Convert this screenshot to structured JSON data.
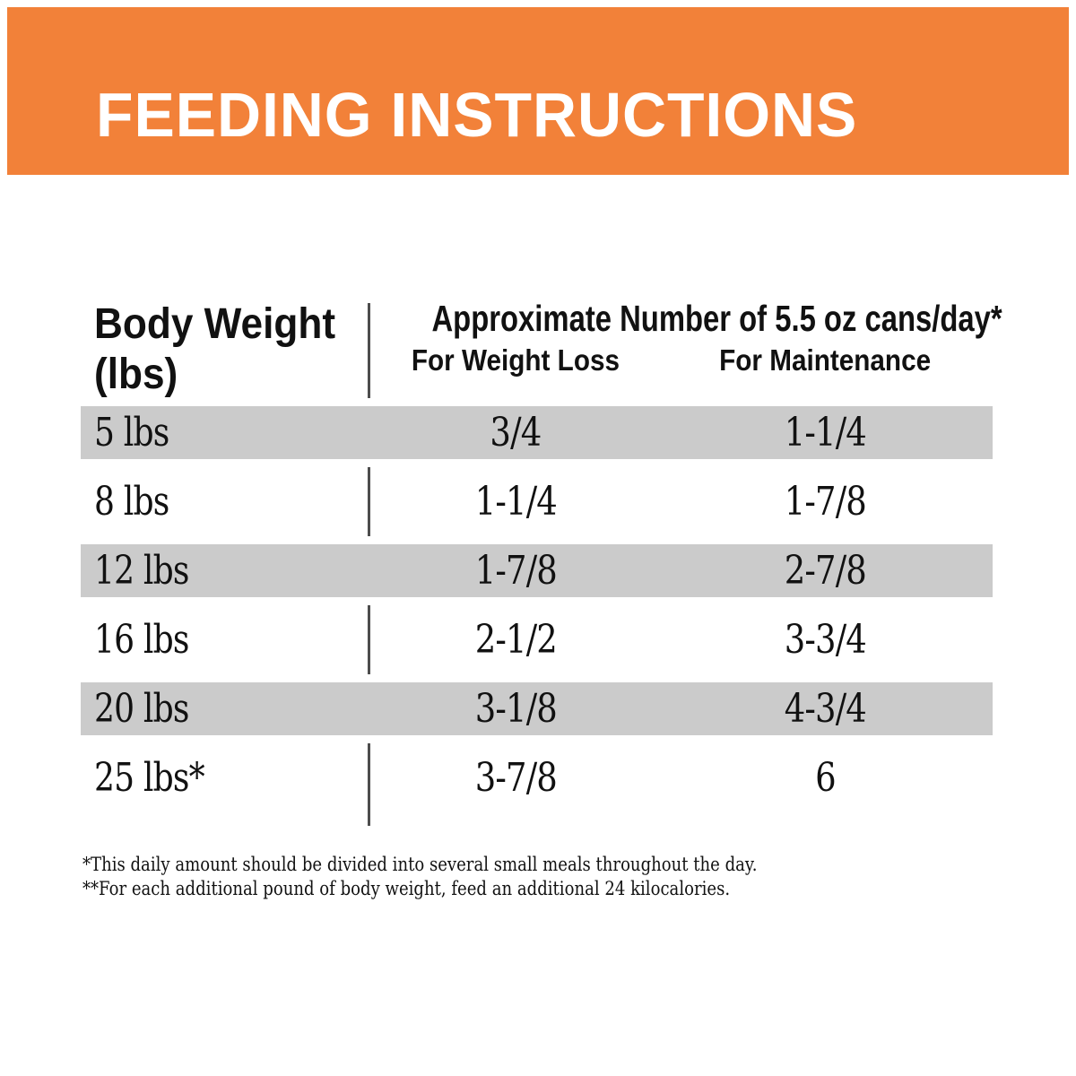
{
  "banner": {
    "title": "FEEDING INSTRUCTIONS"
  },
  "table": {
    "body_weight_header": {
      "line1": "Body Weight",
      "line2": "(lbs)"
    },
    "span_header": "Approximate Number of 5.5 oz cans/day*",
    "sub_headers": [
      "For Weight Loss",
      "For Maintenance"
    ],
    "rows": [
      {
        "weight": "5 lbs",
        "weight_loss": "3/4",
        "maintenance": "1-1/4",
        "shaded": true
      },
      {
        "weight": "8 lbs",
        "weight_loss": "1-1/4",
        "maintenance": "1-7/8",
        "shaded": false
      },
      {
        "weight": "12 lbs",
        "weight_loss": "1-7/8",
        "maintenance": "2-7/8",
        "shaded": true
      },
      {
        "weight": "16 lbs",
        "weight_loss": "2-1/2",
        "maintenance": "3-3/4",
        "shaded": false
      },
      {
        "weight": "20 lbs",
        "weight_loss": "3-1/8",
        "maintenance": "4-3/4",
        "shaded": true
      },
      {
        "weight": "25 lbs*",
        "weight_loss": "3-7/8",
        "maintenance": "6",
        "shaded": false
      }
    ]
  },
  "footnotes": [
    "*This daily amount should be divided into several small meals throughout the day.",
    "**For each additional pound of body weight, feed an additional 24 kilocalories."
  ],
  "colors": {
    "accent_orange": "#F28139",
    "row_shade": "#CBCBCB",
    "divider": "#4D4D4D",
    "title_text": "#FFFFFF",
    "text": "#111111"
  }
}
